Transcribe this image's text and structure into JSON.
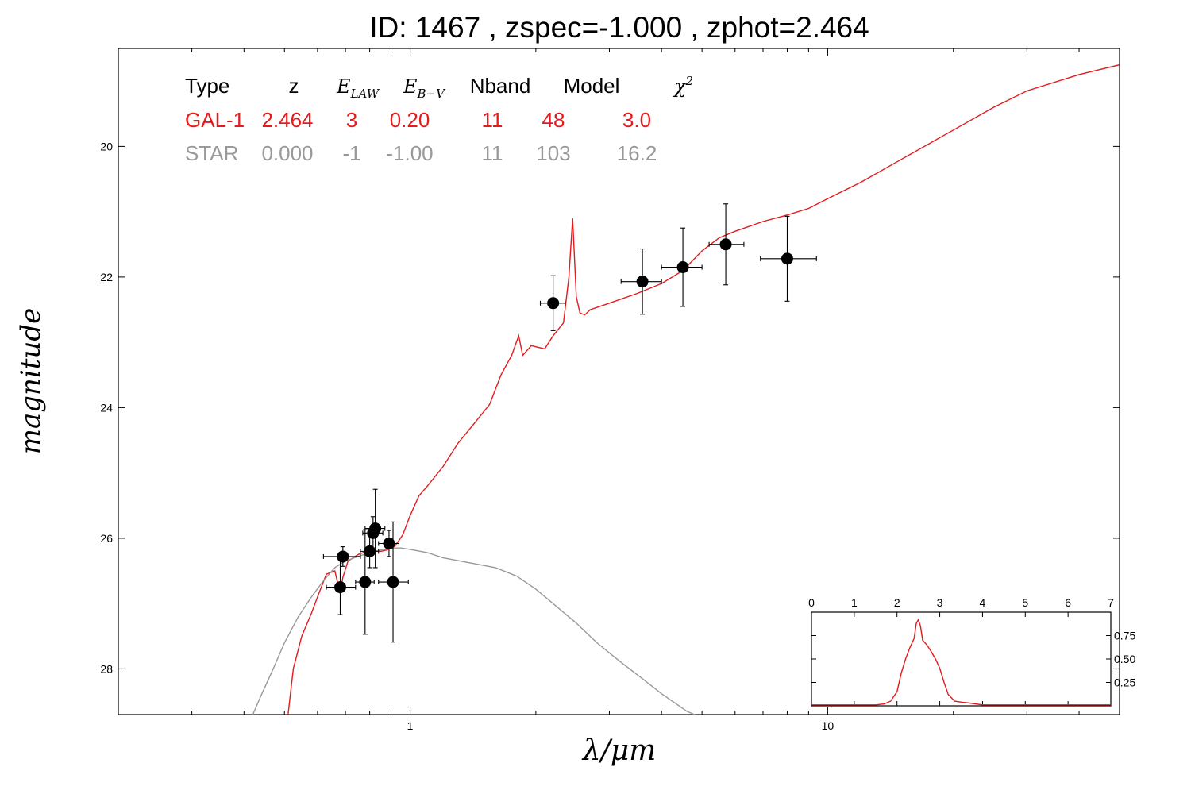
{
  "title": "ID:  1467  , zspec=-1.000 , zphot=2.464",
  "chart_data": [
    {
      "type": "line",
      "xlabel": "λ/μm",
      "ylabel": "magnitude",
      "xscale": "log",
      "xlim": [
        0.2,
        50
      ],
      "ylim": [
        28.7,
        18.5
      ],
      "x_ticks": [
        1,
        10
      ],
      "y_ticks": [
        20,
        22,
        24,
        26,
        28
      ],
      "fit_table": {
        "headers": [
          "Type",
          "z",
          "E_LAW",
          "E_B−V",
          "Nband",
          "Model",
          "χ²"
        ],
        "rows": [
          {
            "cells": [
              "GAL-1",
              "2.464",
              "3",
              "0.20",
              "11",
              "48",
              "3.0"
            ],
            "color": "#e41a1c"
          },
          {
            "cells": [
              "STAR",
              "0.000",
              "-1",
              "-1.00",
              "11",
              "103",
              "16.2"
            ],
            "color": "#999999"
          }
        ]
      },
      "series": [
        {
          "color": "#e41a1c",
          "points": [
            [
              0.51,
              28.7
            ],
            [
              0.525,
              28.0
            ],
            [
              0.55,
              27.5
            ],
            [
              0.58,
              27.15
            ],
            [
              0.6,
              26.9
            ],
            [
              0.63,
              26.55
            ],
            [
              0.66,
              26.5
            ],
            [
              0.68,
              26.85
            ],
            [
              0.69,
              26.6
            ],
            [
              0.71,
              26.35
            ],
            [
              0.75,
              26.25
            ],
            [
              0.8,
              26.18
            ],
            [
              0.85,
              26.2
            ],
            [
              0.88,
              26.18
            ],
            [
              0.92,
              26.12
            ],
            [
              0.96,
              25.95
            ],
            [
              1.0,
              25.65
            ],
            [
              1.05,
              25.35
            ],
            [
              1.1,
              25.2
            ],
            [
              1.2,
              24.9
            ],
            [
              1.3,
              24.55
            ],
            [
              1.4,
              24.3
            ],
            [
              1.55,
              23.95
            ],
            [
              1.65,
              23.5
            ],
            [
              1.75,
              23.2
            ],
            [
              1.82,
              22.9
            ],
            [
              1.86,
              23.2
            ],
            [
              1.95,
              23.05
            ],
            [
              2.1,
              23.1
            ],
            [
              2.2,
              22.9
            ],
            [
              2.33,
              22.7
            ],
            [
              2.4,
              22.0
            ],
            [
              2.45,
              21.1
            ],
            [
              2.5,
              22.3
            ],
            [
              2.55,
              22.55
            ],
            [
              2.62,
              22.58
            ],
            [
              2.7,
              22.5
            ],
            [
              3.0,
              22.4
            ],
            [
              3.5,
              22.25
            ],
            [
              4.0,
              22.1
            ],
            [
              4.5,
              21.9
            ],
            [
              5.0,
              21.6
            ],
            [
              5.5,
              21.4
            ],
            [
              6.0,
              21.3
            ],
            [
              7.0,
              21.15
            ],
            [
              8.0,
              21.05
            ],
            [
              9.0,
              20.95
            ],
            [
              10,
              20.8
            ],
            [
              12,
              20.55
            ],
            [
              15,
              20.2
            ],
            [
              20,
              19.75
            ],
            [
              25,
              19.4
            ],
            [
              30,
              19.15
            ],
            [
              40,
              18.9
            ],
            [
              50,
              18.75
            ]
          ]
        },
        {
          "color": "#999999",
          "points": [
            [
              0.42,
              28.7
            ],
            [
              0.44,
              28.4
            ],
            [
              0.47,
              28.0
            ],
            [
              0.5,
              27.6
            ],
            [
              0.54,
              27.2
            ],
            [
              0.58,
              26.9
            ],
            [
              0.62,
              26.65
            ],
            [
              0.66,
              26.45
            ],
            [
              0.7,
              26.35
            ],
            [
              0.75,
              26.28
            ],
            [
              0.8,
              26.22
            ],
            [
              0.85,
              26.18
            ],
            [
              0.9,
              26.15
            ],
            [
              0.95,
              26.15
            ],
            [
              1.0,
              26.17
            ],
            [
              1.1,
              26.22
            ],
            [
              1.2,
              26.3
            ],
            [
              1.4,
              26.38
            ],
            [
              1.6,
              26.45
            ],
            [
              1.8,
              26.58
            ],
            [
              2.0,
              26.78
            ],
            [
              2.2,
              27.0
            ],
            [
              2.5,
              27.3
            ],
            [
              2.8,
              27.6
            ],
            [
              3.2,
              27.9
            ],
            [
              3.6,
              28.15
            ],
            [
              4.0,
              28.38
            ],
            [
              4.6,
              28.65
            ],
            [
              4.8,
              28.7
            ]
          ]
        }
      ],
      "points": [
        {
          "x": 0.69,
          "y": 26.28,
          "xerr": [
            0.62,
            0.76
          ],
          "yerr": 0.15
        },
        {
          "x": 0.68,
          "y": 26.75,
          "xerr": [
            0.63,
            0.74
          ],
          "yerr": 0.42
        },
        {
          "x": 0.78,
          "y": 26.67,
          "xerr": [
            0.74,
            0.82
          ],
          "yerr": 0.8
        },
        {
          "x": 0.8,
          "y": 26.2,
          "xerr": [
            0.76,
            0.84
          ],
          "yerr": 0.25
        },
        {
          "x": 0.815,
          "y": 25.92,
          "xerr": [
            0.77,
            0.86
          ],
          "yerr": 0.25
        },
        {
          "x": 0.825,
          "y": 25.85,
          "xerr": [
            0.78,
            0.87
          ],
          "yerr": 0.6
        },
        {
          "x": 0.89,
          "y": 26.08,
          "xerr": [
            0.84,
            0.94
          ],
          "yerr": 0.2
        },
        {
          "x": 0.91,
          "y": 26.67,
          "xerr": [
            0.84,
            0.99
          ],
          "yerr": 0.92
        },
        {
          "x": 2.2,
          "y": 22.4,
          "xerr": [
            2.05,
            2.35
          ],
          "yerr": 0.42
        },
        {
          "x": 3.6,
          "y": 22.07,
          "xerr": [
            3.2,
            4.0
          ],
          "yerr": 0.5
        },
        {
          "x": 4.5,
          "y": 21.85,
          "xerr": [
            4.0,
            5.0
          ],
          "yerr": 0.6
        },
        {
          "x": 5.7,
          "y": 21.5,
          "xerr": [
            5.2,
            6.3
          ],
          "yerr": 0.62
        },
        {
          "x": 8.0,
          "y": 21.72,
          "xerr": [
            6.9,
            9.4
          ],
          "yerr": 0.65
        }
      ]
    },
    {
      "type": "line",
      "xlim": [
        0,
        7
      ],
      "ylim": [
        0,
        1.0
      ],
      "x_ticks": [
        0,
        1,
        2,
        3,
        4,
        5,
        6,
        7
      ],
      "y_ticks": [
        "0.25",
        "0.50",
        "0.75"
      ],
      "series": [
        {
          "color": "#e41a1c",
          "points": [
            [
              0,
              0.01
            ],
            [
              1.5,
              0.01
            ],
            [
              1.7,
              0.02
            ],
            [
              1.85,
              0.05
            ],
            [
              2.0,
              0.15
            ],
            [
              2.1,
              0.35
            ],
            [
              2.2,
              0.5
            ],
            [
              2.3,
              0.62
            ],
            [
              2.4,
              0.72
            ],
            [
              2.45,
              0.88
            ],
            [
              2.5,
              0.92
            ],
            [
              2.55,
              0.85
            ],
            [
              2.6,
              0.7
            ],
            [
              2.7,
              0.65
            ],
            [
              2.8,
              0.58
            ],
            [
              2.9,
              0.5
            ],
            [
              3.0,
              0.4
            ],
            [
              3.1,
              0.25
            ],
            [
              3.2,
              0.12
            ],
            [
              3.35,
              0.05
            ],
            [
              3.5,
              0.04
            ],
            [
              3.7,
              0.03
            ],
            [
              4.0,
              0.01
            ],
            [
              7,
              0.01
            ]
          ]
        }
      ]
    }
  ]
}
